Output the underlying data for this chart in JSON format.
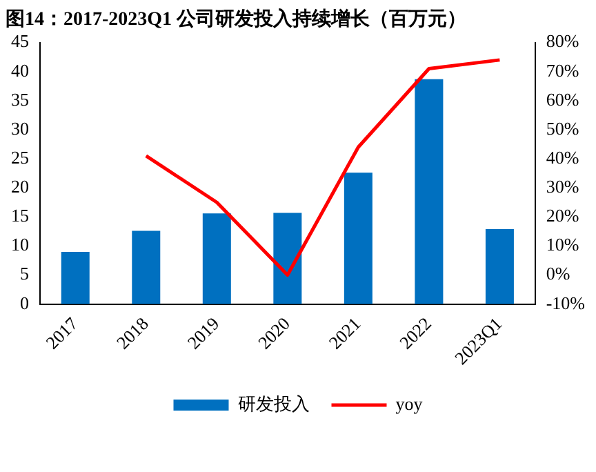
{
  "chart_data": {
    "type": "bar",
    "title": "图14：2017-2023Q1 公司研发投入持续增长（百万元）",
    "categories": [
      "2017",
      "2018",
      "2019",
      "2020",
      "2021",
      "2022",
      "2023Q1"
    ],
    "series": [
      {
        "name": "研发投入",
        "color": "#0070c0",
        "values": [
          9.0,
          12.6,
          15.6,
          15.7,
          22.6,
          38.7,
          12.9
        ]
      },
      {
        "name": "yoy",
        "type": "line",
        "axis": "y2",
        "color": "#ff0000",
        "values": [
          null,
          41,
          25,
          0,
          44,
          71,
          74
        ]
      }
    ],
    "ylim": [
      0,
      45
    ],
    "yticks": [
      0,
      5,
      10,
      15,
      20,
      25,
      30,
      35,
      40,
      45
    ],
    "y2lim": [
      -10,
      80
    ],
    "y2ticks": [
      {
        "value": -10,
        "label": "-10%"
      },
      {
        "value": 0,
        "label": "0%"
      },
      {
        "value": 10,
        "label": "10%"
      },
      {
        "value": 20,
        "label": "20%"
      },
      {
        "value": 30,
        "label": "30%"
      },
      {
        "value": 40,
        "label": "40%"
      },
      {
        "value": 50,
        "label": "50%"
      },
      {
        "value": 60,
        "label": "60%"
      },
      {
        "value": 70,
        "label": "70%"
      },
      {
        "value": 80,
        "label": "80%"
      }
    ],
    "grid": false,
    "legend": "bottom",
    "marker": "none"
  }
}
